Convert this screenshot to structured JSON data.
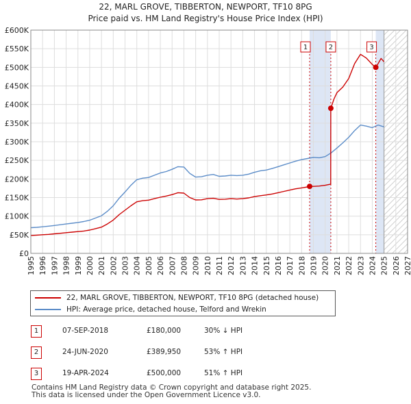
{
  "title_line1": "22, MARL GROVE, TIBBERTON, NEWPORT, TF10 8PG",
  "title_line2": "Price paid vs. HM Land Registry's House Price Index (HPI)",
  "colors": {
    "property": "#cc0000",
    "hpi": "#5b8cc8",
    "grid": "#dddddd",
    "highlight": "#dde6f5"
  },
  "legend": {
    "property_label": "22, MARL GROVE, TIBBERTON, NEWPORT, TF10 8PG (detached house)",
    "hpi_label": "HPI: Average price, detached house, Telford and Wrekin"
  },
  "sales": [
    {
      "num": "1",
      "date": "07-SEP-2018",
      "price": "£180,000",
      "hpi": "30% ↓ HPI"
    },
    {
      "num": "2",
      "date": "24-JUN-2020",
      "price": "£389,950",
      "hpi": "53% ↑ HPI"
    },
    {
      "num": "3",
      "date": "19-APR-2024",
      "price": "£500,000",
      "hpi": "51% ↑ HPI"
    }
  ],
  "footer_line1": "Contains HM Land Registry data © Crown copyright and database right 2025.",
  "footer_line2": "This data is licensed under the Open Government Licence v3.0.",
  "chart_data": {
    "type": "line",
    "title": "22, MARL GROVE, TIBBERTON, NEWPORT, TF10 8PG — Price paid vs. HM Land Registry's House Price Index (HPI)",
    "xlabel": "",
    "ylabel": "",
    "xlim": [
      1995,
      2027
    ],
    "ylim": [
      0,
      600000
    ],
    "x_ticks": [
      1995,
      1996,
      1997,
      1998,
      1999,
      2000,
      2001,
      2002,
      2003,
      2004,
      2005,
      2006,
      2007,
      2008,
      2009,
      2010,
      2011,
      2012,
      2013,
      2014,
      2015,
      2016,
      2017,
      2018,
      2019,
      2020,
      2021,
      2022,
      2023,
      2024,
      2025,
      2026,
      2027
    ],
    "y_ticks": [
      0,
      50000,
      100000,
      150000,
      200000,
      250000,
      300000,
      350000,
      400000,
      450000,
      500000,
      550000,
      600000
    ],
    "y_tick_labels": [
      "£0",
      "£50K",
      "£100K",
      "£150K",
      "£200K",
      "£250K",
      "£300K",
      "£350K",
      "£400K",
      "£450K",
      "£500K",
      "£550K",
      "£600K"
    ],
    "grid": true,
    "future_hatch_from": 2025.0,
    "highlight_ranges": [
      [
        2018.68,
        2020.48
      ],
      [
        2024.3,
        2025.0
      ]
    ],
    "series": [
      {
        "name": "HPI: Average price, detached house, Telford and Wrekin",
        "x": [
          1995,
          1995.5,
          1996,
          1996.5,
          1997,
          1997.5,
          1998,
          1998.5,
          1999,
          1999.5,
          2000,
          2000.5,
          2001,
          2001.5,
          2002,
          2002.5,
          2003,
          2003.5,
          2004,
          2004.5,
          2005,
          2005.5,
          2006,
          2006.5,
          2007,
          2007.5,
          2008,
          2008.5,
          2009,
          2009.5,
          2010,
          2010.5,
          2011,
          2011.5,
          2012,
          2012.5,
          2013,
          2013.5,
          2014,
          2014.5,
          2015,
          2015.5,
          2016,
          2016.5,
          2017,
          2017.5,
          2018,
          2018.5,
          2019,
          2019.5,
          2020,
          2020.5,
          2021,
          2021.5,
          2022,
          2022.5,
          2023,
          2023.5,
          2024,
          2024.5,
          2025
        ],
        "values": [
          69000,
          70000,
          71500,
          73000,
          75000,
          77000,
          79000,
          81000,
          83000,
          85500,
          89000,
          95000,
          101000,
          113000,
          128000,
          148000,
          165000,
          183000,
          198000,
          202000,
          204000,
          210000,
          216000,
          220000,
          226000,
          233000,
          232000,
          215000,
          205000,
          206000,
          210000,
          212000,
          207000,
          208000,
          210000,
          209000,
          210000,
          213000,
          218000,
          222000,
          224000,
          228000,
          233000,
          238000,
          243000,
          248000,
          252000,
          255000,
          258000,
          257000,
          260000,
          270000,
          283000,
          297000,
          312000,
          330000,
          345000,
          342000,
          338000,
          345000,
          340000
        ]
      },
      {
        "name": "22, MARL GROVE, TIBBERTON, NEWPORT, TF10 8PG (detached house)",
        "x": [
          1995,
          1995.5,
          1996,
          1996.5,
          1997,
          1997.5,
          1998,
          1998.5,
          1999,
          1999.5,
          2000,
          2000.5,
          2001,
          2001.5,
          2002,
          2002.5,
          2003,
          2003.5,
          2004,
          2004.5,
          2005,
          2005.5,
          2006,
          2006.5,
          2007,
          2007.5,
          2008,
          2008.5,
          2009,
          2009.5,
          2010,
          2010.5,
          2011,
          2011.5,
          2012,
          2012.5,
          2013,
          2013.5,
          2014,
          2014.5,
          2015,
          2015.5,
          2016,
          2016.5,
          2017,
          2017.5,
          2018,
          2018.5,
          2018.68,
          2019,
          2019.5,
          2020,
          2020.47,
          2020.48,
          2020.75,
          2021,
          2021.5,
          2022,
          2022.5,
          2023,
          2023.5,
          2024,
          2024.3,
          2024.5,
          2024.75,
          2025
        ],
        "values": [
          48000,
          49000,
          50000,
          51000,
          52500,
          54000,
          55500,
          57000,
          58500,
          60000,
          62500,
          66500,
          70500,
          79000,
          89500,
          104000,
          116000,
          128000,
          138500,
          141500,
          143000,
          147000,
          151000,
          154000,
          158000,
          163000,
          162000,
          150000,
          143500,
          144000,
          147000,
          148000,
          145000,
          145500,
          147000,
          146000,
          147000,
          149000,
          152500,
          155000,
          157000,
          159500,
          163000,
          166500,
          170000,
          173500,
          176000,
          178500,
          180000,
          180000,
          181000,
          183000,
          186000,
          389950,
          415000,
          432000,
          447000,
          470000,
          510000,
          535000,
          525000,
          508000,
          500000,
          510000,
          524000,
          515000
        ]
      }
    ],
    "sale_points": [
      {
        "label": "1",
        "x": 2018.68,
        "value": 180000
      },
      {
        "label": "2",
        "x": 2020.48,
        "value": 389950
      },
      {
        "label": "3",
        "x": 2024.3,
        "value": 500000
      }
    ]
  }
}
